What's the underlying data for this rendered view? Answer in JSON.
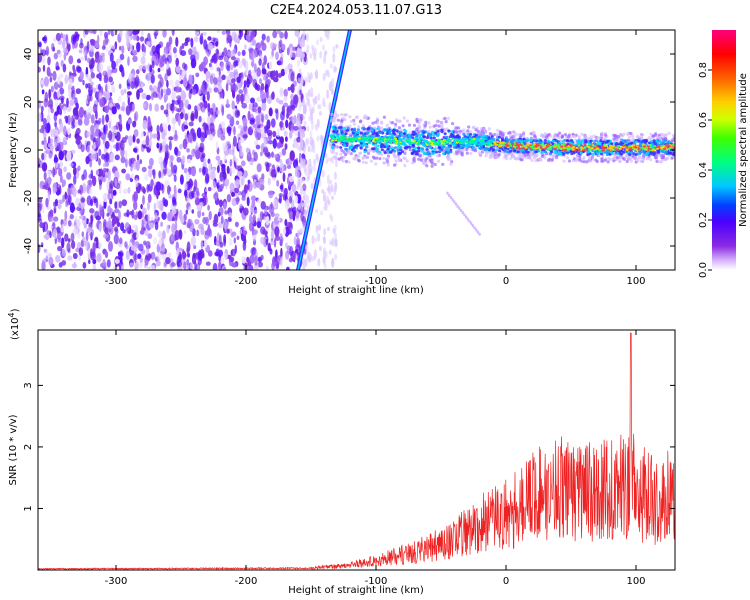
{
  "title": "C2E4.2024.053.11.07.G13",
  "chart_data": [
    {
      "type": "heatmap",
      "xlabel": "Height of straight line (km)",
      "ylabel": "Frequency (Hz)",
      "xlim": [
        -360,
        130
      ],
      "ylim": [
        -50,
        50
      ],
      "x_ticks": [
        -300,
        -200,
        -100,
        0,
        100
      ],
      "y_ticks": [
        -40,
        -20,
        0,
        20,
        40
      ],
      "colorbar": {
        "label": "Normalized spectral amplitude",
        "range": [
          0,
          0.96
        ],
        "ticks": [
          0.0,
          0.2,
          0.4,
          0.6,
          0.8
        ],
        "colors": [
          "#ffffff",
          "#d8b4ff",
          "#8a2be2",
          "#4b00ff",
          "#0040ff",
          "#00c8ff",
          "#00ff80",
          "#40ff00",
          "#d0ff00",
          "#ffd000",
          "#ff6000",
          "#ff0000",
          "#ff0080"
        ]
      },
      "features": {
        "noise_region_x": [
          -360,
          -160
        ],
        "diagonal_streak": {
          "x_start": -160,
          "y_start": -50,
          "x_end": -120,
          "y_end": 50
        },
        "ridge": [
          {
            "x": -135,
            "y": 5
          },
          {
            "x": -100,
            "y": 4
          },
          {
            "x": -60,
            "y": 3
          },
          {
            "x": -30,
            "y": 4
          },
          {
            "x": 0,
            "y": 2
          },
          {
            "x": 50,
            "y": 1
          },
          {
            "x": 130,
            "y": 1
          }
        ]
      }
    },
    {
      "type": "line",
      "xlabel": "Height of straight line (km)",
      "ylabel": "SNR (10 * v/v)",
      "y_multiplier": "(x10",
      "y_multiplier_exp": "4",
      "y_multiplier_close": ")",
      "xlim": [
        -360,
        130
      ],
      "ylim": [
        0,
        3.9
      ],
      "x_ticks": [
        -300,
        -200,
        -100,
        0,
        100
      ],
      "y_ticks": [
        1,
        2,
        3
      ],
      "series": [
        {
          "color": "#ee2222",
          "envelope": [
            {
              "x": -360,
              "y": 0.02
            },
            {
              "x": -150,
              "y": 0.03
            },
            {
              "x": -120,
              "y": 0.08
            },
            {
              "x": -100,
              "y": 0.15
            },
            {
              "x": -80,
              "y": 0.25
            },
            {
              "x": -60,
              "y": 0.35
            },
            {
              "x": -40,
              "y": 0.5
            },
            {
              "x": -20,
              "y": 0.75
            },
            {
              "x": 0,
              "y": 0.9
            },
            {
              "x": 20,
              "y": 1.2
            },
            {
              "x": 40,
              "y": 1.35
            },
            {
              "x": 60,
              "y": 1.25
            },
            {
              "x": 80,
              "y": 1.3
            },
            {
              "x": 95,
              "y": 1.4
            },
            {
              "x": 110,
              "y": 1.15
            },
            {
              "x": 130,
              "y": 1.2
            }
          ],
          "spike": {
            "x": 96,
            "y": 3.85
          }
        }
      ]
    }
  ]
}
